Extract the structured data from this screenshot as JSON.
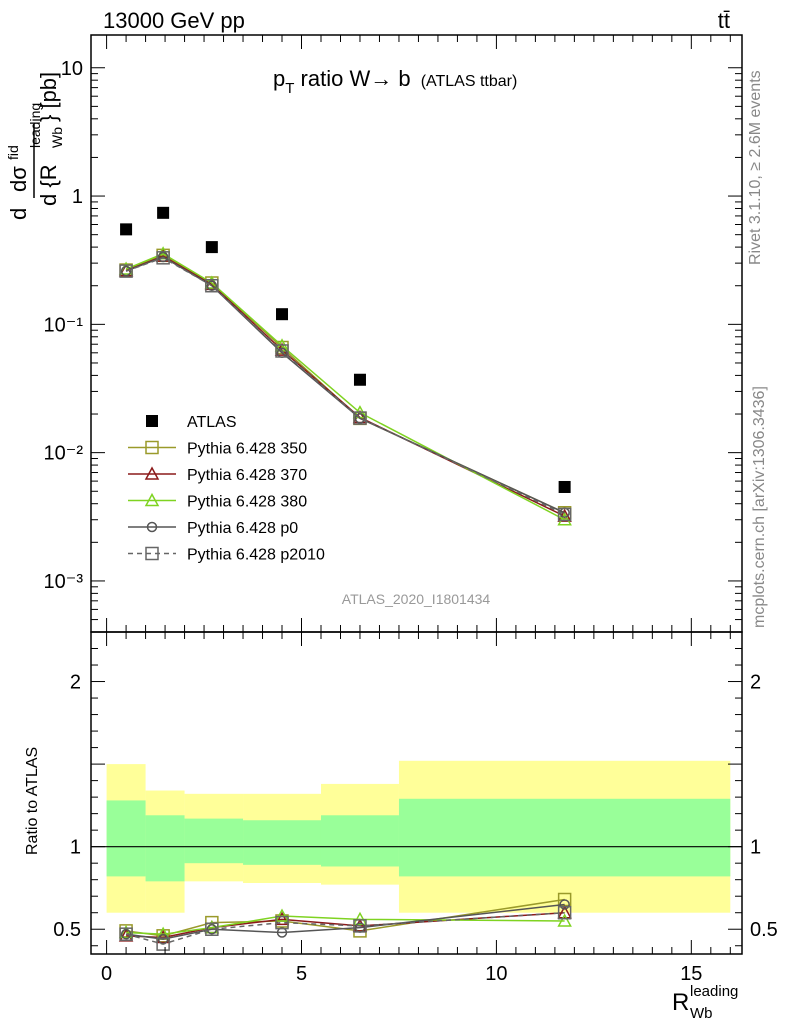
{
  "header": {
    "left": "13000 GeV pp",
    "right": "tt̄"
  },
  "title": {
    "main": "p",
    "sub": "T",
    "rest": " ratio W→ b",
    "small": "(ATLAS ttbar)"
  },
  "side_labels": {
    "rivet": "Rivet 3.1.10, ≥ 2.6M events",
    "mcplots": "mcplots.cern.ch [arXiv:1306.3436]"
  },
  "analysis_id": "ATLAS_2020_I1801434",
  "ylabel_top": {
    "d": "d",
    "sigma": "dσ",
    "fid": "fid",
    "over": "d {R",
    "sup": "leading",
    "sub": "Wb",
    "close": "} [pb]"
  },
  "ylabel_bottom": "Ratio to ATLAS",
  "xlabel": {
    "main": "R",
    "sup": "leading",
    "sub": "Wb"
  },
  "colors": {
    "atlas": "#000000",
    "p350": "#9a9a2a",
    "p370": "#8b1a1a",
    "p380": "#7fd321",
    "p0": "#555555",
    "p2010": "#666666",
    "band_outer": "#ffff99",
    "band_inner": "#99ff99"
  },
  "chart_data": [
    {
      "type": "scatter",
      "x_scale": "linear",
      "y_scale": "log",
      "xlim": [
        -0.4,
        16.3
      ],
      "ylim": [
        0.0004,
        18
      ],
      "yticks": [
        {
          "value": 10,
          "label": "10"
        },
        {
          "value": 1,
          "label": "1"
        },
        {
          "value": 0.1,
          "label": "10⁻¹"
        },
        {
          "value": 0.01,
          "label": "10⁻²"
        },
        {
          "value": 0.001,
          "label": "10⁻³"
        }
      ],
      "bin_edges": [
        0,
        1,
        2,
        3.5,
        5.5,
        7.5,
        16
      ],
      "x": [
        0.5,
        1.45,
        2.7,
        4.5,
        6.5,
        11.75
      ],
      "series": [
        {
          "name": "ATLAS",
          "key": "atlas",
          "marker": "filled-square",
          "line": "none",
          "values": [
            0.55,
            0.74,
            0.4,
            0.12,
            0.037,
            0.0054
          ]
        },
        {
          "name": "Pythia 6.428 350",
          "key": "p350",
          "marker": "open-square",
          "line": "solid",
          "values": [
            0.265,
            0.345,
            0.21,
            0.066,
            0.0185,
            0.0034
          ]
        },
        {
          "name": "Pythia 6.428 370",
          "key": "p370",
          "marker": "open-triangle",
          "line": "solid",
          "values": [
            0.262,
            0.34,
            0.205,
            0.063,
            0.0188,
            0.0032
          ]
        },
        {
          "name": "Pythia 6.428 380",
          "key": "p380",
          "marker": "open-triangle",
          "line": "solid",
          "values": [
            0.27,
            0.355,
            0.21,
            0.068,
            0.0205,
            0.003
          ]
        },
        {
          "name": "Pythia 6.428 p0",
          "key": "p0",
          "marker": "open-circle",
          "line": "solid",
          "values": [
            0.26,
            0.335,
            0.2,
            0.06,
            0.0185,
            0.0034
          ]
        },
        {
          "name": "Pythia 6.428 p2010",
          "key": "p2010",
          "marker": "open-square",
          "line": "dashed",
          "values": [
            0.26,
            0.33,
            0.2,
            0.062,
            0.0186,
            0.0033
          ]
        }
      ]
    },
    {
      "type": "line",
      "ylim": [
        0.35,
        2.3
      ],
      "yticks": [
        0.5,
        1,
        2
      ],
      "xticks": [
        0,
        5,
        10,
        15
      ],
      "reference": 1,
      "bands": {
        "bin_edges": [
          0,
          1,
          2,
          3.5,
          5.5,
          7.5,
          16
        ],
        "outer": [
          [
            0.6,
            1.5
          ],
          [
            0.6,
            1.34
          ],
          [
            0.79,
            1.32
          ],
          [
            0.78,
            1.32
          ],
          [
            0.77,
            1.38
          ],
          [
            0.6,
            1.52
          ]
        ],
        "inner": [
          [
            0.82,
            1.28
          ],
          [
            0.79,
            1.19
          ],
          [
            0.9,
            1.17
          ],
          [
            0.89,
            1.16
          ],
          [
            0.88,
            1.19
          ],
          [
            0.82,
            1.29
          ]
        ]
      },
      "x": [
        0.5,
        1.45,
        2.7,
        4.5,
        6.5,
        11.75
      ],
      "series": [
        {
          "name": "Pythia 6.428 350",
          "key": "p350",
          "values": [
            0.49,
            0.46,
            0.54,
            0.55,
            0.49,
            0.68
          ]
        },
        {
          "name": "Pythia 6.428 370",
          "key": "p370",
          "values": [
            0.46,
            0.45,
            0.51,
            0.56,
            0.52,
            0.6
          ]
        },
        {
          "name": "Pythia 6.428 380",
          "key": "p380",
          "values": [
            0.48,
            0.47,
            0.51,
            0.58,
            0.56,
            0.55
          ]
        },
        {
          "name": "Pythia 6.428 p0",
          "key": "p0",
          "values": [
            0.47,
            0.44,
            0.5,
            0.48,
            0.51,
            0.65
          ]
        },
        {
          "name": "Pythia 6.428 p2010",
          "key": "p2010",
          "values": [
            0.47,
            0.41,
            0.5,
            0.54,
            0.52,
            0.6
          ]
        }
      ]
    }
  ]
}
